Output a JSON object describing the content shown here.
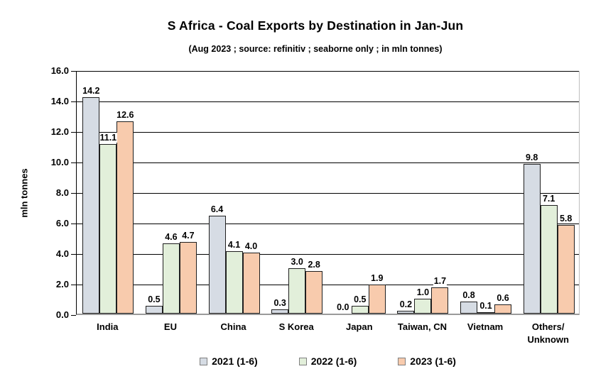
{
  "title": "S Africa - Coal Exports by Destination in Jan-Jun",
  "subtitle": "(Aug 2023 ; source: refinitiv ; seaborne only ; in mln tonnes)",
  "chart_data": {
    "type": "bar",
    "title": "S Africa - Coal Exports by Destination in Jan-Jun",
    "subtitle": "(Aug 2023 ; source: refinitiv ; seaborne only ; in mln tonnes)",
    "xlabel": "",
    "ylabel": "mln tonnes",
    "ylim": [
      0,
      16
    ],
    "ytick_labels": [
      "16.0",
      "14.0",
      "12.0",
      "10.0",
      "8.0",
      "6.0",
      "4.0",
      "2.0",
      "0.0"
    ],
    "grid": true,
    "gridline_color": "#000000",
    "axis_color": "#9a9a9a",
    "legend_position": "bottom",
    "data_labels": true,
    "label_format": "one-decimal",
    "categories": [
      "India",
      "EU",
      "China",
      "S Korea",
      "Japan",
      "Taiwan, CN",
      "Vietnam",
      "Others/\nUnknown"
    ],
    "series": [
      {
        "name": "2021 (1-6)",
        "color": "#D6DCE4",
        "values": [
          14.2,
          0.5,
          6.4,
          0.3,
          0.0,
          0.2,
          0.8,
          9.8
        ]
      },
      {
        "name": "2022 (1-6)",
        "color": "#E2EFDA",
        "values": [
          11.1,
          4.6,
          4.1,
          3.0,
          0.5,
          1.0,
          0.1,
          7.1
        ]
      },
      {
        "name": "2023 (1-6)",
        "color": "#F8CBAD",
        "values": [
          12.6,
          4.7,
          4.0,
          2.8,
          1.9,
          1.7,
          0.6,
          5.8
        ]
      }
    ],
    "bar_border_color": "#1f1f1f"
  }
}
